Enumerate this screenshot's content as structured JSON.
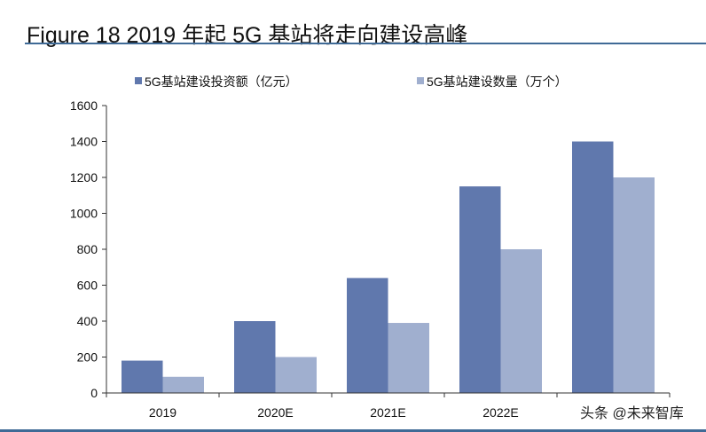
{
  "chart_data": {
    "type": "bar",
    "title": "Figure 18 2019 年起 5G 基站将走向建设高峰",
    "categories": [
      "2019",
      "2020E",
      "2021E",
      "2022E",
      ""
    ],
    "series": [
      {
        "name": "5G基站建设投资额（亿元）",
        "values": [
          180,
          400,
          640,
          1150,
          1400
        ],
        "color": "#6078ad"
      },
      {
        "name": "5G基站建设数量（万个）",
        "values": [
          90,
          200,
          390,
          800,
          1200
        ],
        "color": "#a0afcf"
      }
    ],
    "xlabel": "",
    "ylabel": "",
    "ylim": [
      0,
      1600
    ],
    "yticks": [
      0,
      200,
      400,
      600,
      800,
      1000,
      1200,
      1400,
      1600
    ],
    "grid": false,
    "legend": "top"
  },
  "watermark": "头条 @未来智库"
}
